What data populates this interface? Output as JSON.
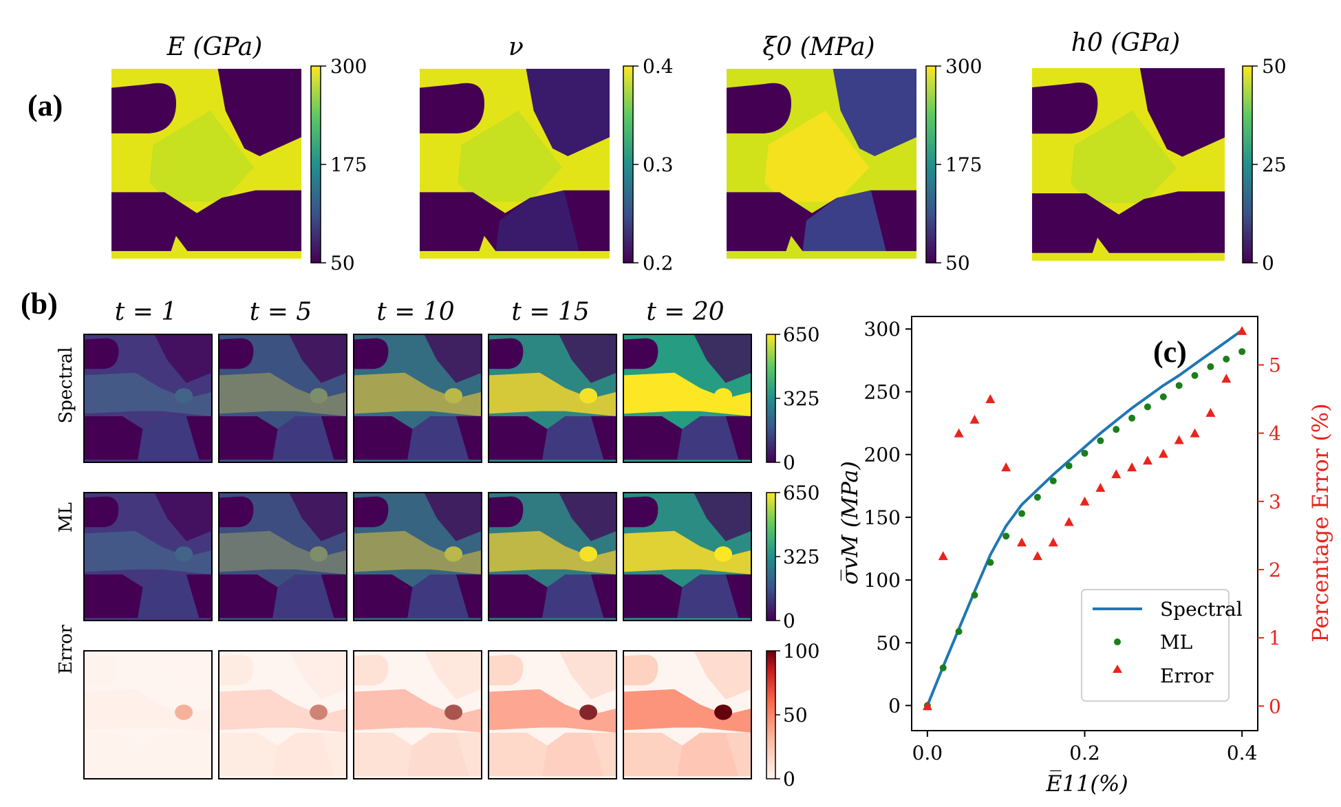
{
  "panel_labels": {
    "a": "(a)",
    "b": "(b)",
    "c": "(c)"
  },
  "panel_a": {
    "maps": [
      {
        "title": "E (GPa)",
        "ticks": [
          "300",
          "175",
          "50"
        ]
      },
      {
        "title": "ν",
        "ticks": [
          "0.4",
          "0.3",
          "0.2"
        ]
      },
      {
        "title": "ξ0 (MPa)",
        "ticks": [
          "300",
          "175",
          "50"
        ]
      },
      {
        "title": "h0 (GPa)",
        "ticks": [
          "50",
          "25",
          "0"
        ]
      }
    ]
  },
  "panel_b": {
    "time_labels": [
      "t = 1",
      "t = 5",
      "t = 10",
      "t = 15",
      "t = 20"
    ],
    "intensity": [
      0.05,
      0.3,
      0.55,
      0.8,
      1.0
    ],
    "rows": [
      {
        "label": "Spectral",
        "ticks": [
          "650",
          "325",
          "0"
        ]
      },
      {
        "label": "ML",
        "ticks": [
          "650",
          "325",
          "0"
        ]
      },
      {
        "label": "Error",
        "ticks": [
          "100",
          "50",
          "0"
        ]
      }
    ]
  },
  "colors": {
    "viridis_dark": "#440154",
    "viridis_mid": "#21918c",
    "viridis_yellow": "#fde725",
    "spectral_line": "#1f77b4",
    "ml_points": "#1a7f1a",
    "error_points": "#e8241c"
  },
  "chart_data": {
    "type": "line",
    "panel": "(c)",
    "xlabel": "E̅11(%)",
    "ylabel": "σ̅vM (MPa)",
    "y2label": "Percentage Error (%)",
    "xlim": [
      -0.02,
      0.42
    ],
    "ylim": [
      -20,
      310
    ],
    "y2lim": [
      -0.36,
      5.71
    ],
    "xticks": [
      "0.0",
      "0.2",
      "0.4"
    ],
    "xtick_values": [
      0.0,
      0.2,
      0.4
    ],
    "yticks": [
      "0",
      "50",
      "100",
      "150",
      "200",
      "250",
      "300"
    ],
    "ytick_values": [
      0,
      50,
      100,
      150,
      200,
      250,
      300
    ],
    "y2ticks": [
      "0",
      "1",
      "2",
      "3",
      "4",
      "5"
    ],
    "y2tick_values": [
      0,
      1,
      2,
      3,
      4,
      5
    ],
    "series": [
      {
        "name": "Spectral",
        "kind": "line",
        "axis": "left",
        "x": [
          0.0,
          0.02,
          0.04,
          0.06,
          0.08,
          0.1,
          0.12,
          0.14,
          0.16,
          0.18,
          0.2,
          0.22,
          0.24,
          0.26,
          0.28,
          0.3,
          0.32,
          0.34,
          0.36,
          0.38,
          0.4
        ],
        "y": [
          0,
          31,
          61,
          91,
          120,
          143,
          160,
          172,
          184,
          195,
          206,
          217,
          227,
          237,
          246,
          255,
          263,
          272,
          281,
          290,
          299
        ]
      },
      {
        "name": "ML",
        "kind": "scatter",
        "axis": "left",
        "x": [
          0.0,
          0.02,
          0.04,
          0.06,
          0.08,
          0.1,
          0.12,
          0.14,
          0.16,
          0.18,
          0.2,
          0.22,
          0.24,
          0.26,
          0.28,
          0.3,
          0.32,
          0.34,
          0.36,
          0.38,
          0.4
        ],
        "y": [
          0,
          30,
          59,
          88,
          114,
          135,
          153,
          166,
          179,
          191,
          201,
          211,
          220,
          229,
          238,
          246,
          255,
          263,
          270,
          276,
          282
        ]
      },
      {
        "name": "Error",
        "kind": "scatter",
        "axis": "right",
        "x": [
          0.0,
          0.02,
          0.04,
          0.06,
          0.08,
          0.1,
          0.12,
          0.14,
          0.16,
          0.18,
          0.2,
          0.22,
          0.24,
          0.26,
          0.28,
          0.3,
          0.32,
          0.34,
          0.36,
          0.38,
          0.4
        ],
        "y": [
          0.0,
          2.2,
          4.0,
          4.2,
          4.5,
          3.5,
          2.4,
          2.2,
          2.4,
          2.7,
          3.0,
          3.2,
          3.4,
          3.5,
          3.6,
          3.7,
          3.9,
          4.0,
          4.3,
          4.8,
          5.5
        ]
      }
    ],
    "legend": [
      "Spectral",
      "ML",
      "Error"
    ],
    "legend_position": "bottom-right"
  }
}
